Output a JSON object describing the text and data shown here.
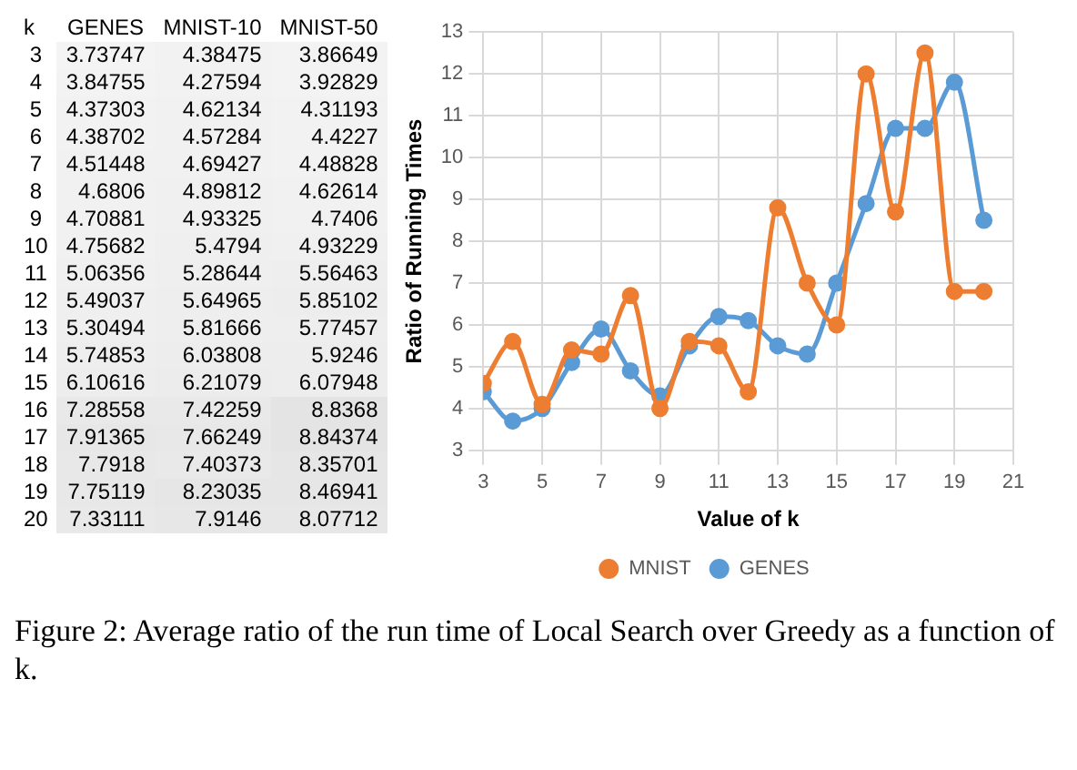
{
  "chart_data": [
    {
      "type": "line",
      "xlabel": "Value of k",
      "ylabel": "Ratio of Running Times",
      "x": [
        3,
        4,
        5,
        6,
        7,
        8,
        9,
        10,
        11,
        12,
        13,
        14,
        15,
        16,
        17,
        18,
        19,
        20
      ],
      "xlim": [
        3,
        21
      ],
      "xticks": [
        3,
        5,
        7,
        9,
        11,
        13,
        15,
        17,
        19,
        21
      ],
      "ylim": [
        3,
        13
      ],
      "yticks": [
        3,
        4,
        5,
        6,
        7,
        8,
        9,
        10,
        11,
        12,
        13
      ],
      "grid": true,
      "legend": "bottom",
      "marker": "circle",
      "line_style": "solid",
      "series": [
        {
          "name": "GENES",
          "color": "#5b9bd5",
          "values": [
            4.4,
            3.7,
            4.0,
            5.1,
            5.9,
            4.9,
            4.3,
            5.5,
            6.2,
            6.1,
            5.5,
            5.3,
            7.0,
            8.9,
            10.7,
            10.7,
            11.8,
            8.5
          ]
        },
        {
          "name": "MNIST",
          "color": "#ed7d31",
          "values": [
            4.6,
            5.6,
            4.1,
            5.4,
            5.3,
            6.7,
            4.0,
            5.6,
            5.5,
            4.4,
            8.8,
            7.0,
            6.0,
            12.0,
            8.7,
            12.5,
            6.8,
            6.8
          ]
        }
      ],
      "annotations": [
        "Figure 2: Average ratio of the run time of Local Search over Greedy as a function of k."
      ]
    },
    {
      "type": "heatmap",
      "ylabel": "k",
      "categories": [
        "GENES",
        "MNIST-10",
        "MNIST-50"
      ],
      "y_categories": [
        "3",
        "4",
        "5",
        "6",
        "7",
        "8",
        "9",
        "10",
        "11",
        "12",
        "13",
        "14",
        "15",
        "16",
        "17",
        "18",
        "19",
        "20"
      ],
      "cell_labels": [
        [
          "3.73747",
          "4.38475",
          "3.86649"
        ],
        [
          "3.84755",
          "4.27594",
          "3.92829"
        ],
        [
          "4.37303",
          "4.62134",
          "4.31193"
        ],
        [
          "4.38702",
          "4.57284",
          "4.4227"
        ],
        [
          "4.51448",
          "4.69427",
          "4.48828"
        ],
        [
          "4.6806",
          "4.89812",
          "4.62614"
        ],
        [
          "4.70881",
          "4.93325",
          "4.7406"
        ],
        [
          "4.75682",
          "5.4794",
          "4.93229"
        ],
        [
          "5.06356",
          "5.28644",
          "5.56463"
        ],
        [
          "5.49037",
          "5.64965",
          "5.85102"
        ],
        [
          "5.30494",
          "5.81666",
          "5.77457"
        ],
        [
          "5.74853",
          "6.03808",
          "5.9246"
        ],
        [
          "6.10616",
          "6.21079",
          "6.07948"
        ],
        [
          "7.28558",
          "7.42259",
          "8.8368"
        ],
        [
          "7.91365",
          "7.66249",
          "8.84374"
        ],
        [
          "7.7918",
          "7.40373",
          "8.35701"
        ],
        [
          "7.75119",
          "8.23035",
          "8.46941"
        ],
        [
          "7.33111",
          "7.9146",
          "8.07712"
        ]
      ],
      "cells": [
        [
          3.73747,
          4.38475,
          3.86649
        ],
        [
          3.84755,
          4.27594,
          3.92829
        ],
        [
          4.37303,
          4.62134,
          4.31193
        ],
        [
          4.38702,
          4.57284,
          4.4227
        ],
        [
          4.51448,
          4.69427,
          4.48828
        ],
        [
          4.6806,
          4.89812,
          4.62614
        ],
        [
          4.70881,
          4.93325,
          4.7406
        ],
        [
          4.75682,
          5.4794,
          4.93229
        ],
        [
          5.06356,
          5.28644,
          5.56463
        ],
        [
          5.49037,
          5.64965,
          5.85102
        ],
        [
          5.30494,
          5.81666,
          5.77457
        ],
        [
          5.74853,
          6.03808,
          5.9246
        ],
        [
          6.10616,
          6.21079,
          6.07948
        ],
        [
          7.28558,
          7.42259,
          8.8368
        ],
        [
          7.91365,
          7.66249,
          8.84374
        ],
        [
          7.7918,
          7.40373,
          8.35701
        ],
        [
          7.75119,
          8.23035,
          8.46941
        ],
        [
          7.33111,
          7.9146,
          8.07712
        ]
      ]
    }
  ]
}
